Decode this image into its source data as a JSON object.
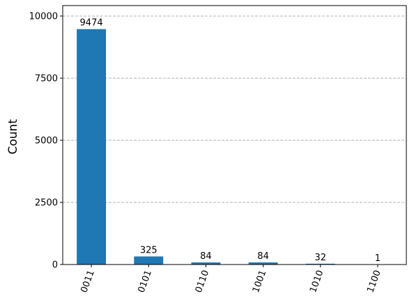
{
  "chart_data": {
    "type": "bar",
    "y_label": "Count",
    "categories": [
      "0011",
      "0101",
      "0110",
      "1001",
      "1010",
      "1100"
    ],
    "values": [
      9474,
      325,
      84,
      84,
      32,
      1
    ],
    "color": "#1f77b4",
    "ylim": [
      0,
      10421.4
    ],
    "yticks": [
      0,
      2500,
      5000,
      7500,
      10000
    ],
    "grid": true
  }
}
